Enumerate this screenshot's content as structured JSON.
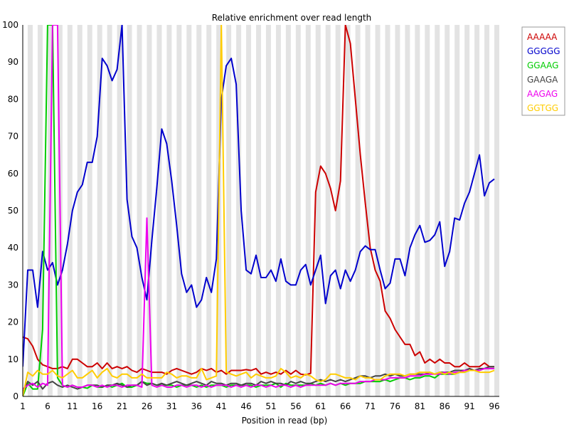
{
  "chart_data": {
    "type": "line",
    "title": "Relative enrichment over read length",
    "xlabel": "Position in read (bp)",
    "ylabel": "",
    "xlim": [
      1,
      97
    ],
    "ylim": [
      0,
      100
    ],
    "x_ticks": [
      "1",
      "6",
      "11",
      "16",
      "21",
      "26",
      "31",
      "36",
      "41",
      "46",
      "51",
      "56",
      "61",
      "66",
      "71",
      "76",
      "81",
      "86",
      "91",
      "96"
    ],
    "y_ticks": [
      "0",
      "10",
      "20",
      "30",
      "40",
      "50",
      "60",
      "70",
      "80",
      "90",
      "100"
    ],
    "grid": "alternating vertical bands",
    "legend_position": "top-right",
    "x": [
      1,
      2,
      3,
      4,
      5,
      6,
      7,
      8,
      9,
      10,
      11,
      12,
      13,
      14,
      15,
      16,
      17,
      18,
      19,
      20,
      21,
      22,
      23,
      24,
      25,
      26,
      27,
      28,
      29,
      30,
      31,
      32,
      33,
      34,
      35,
      36,
      37,
      38,
      39,
      40,
      41,
      42,
      43,
      44,
      45,
      46,
      47,
      48,
      49,
      50,
      51,
      52,
      53,
      54,
      55,
      56,
      57,
      58,
      59,
      60,
      61,
      62,
      63,
      64,
      65,
      66,
      67,
      68,
      69,
      70,
      71,
      72,
      73,
      74,
      75,
      76,
      77,
      78,
      79,
      80,
      81,
      82,
      83,
      84,
      85,
      86,
      87,
      88,
      89,
      90,
      91,
      92,
      93,
      94,
      95,
      96
    ],
    "series": [
      {
        "name": "AAAAA",
        "color": "#cc0000",
        "values": [
          16,
          15.5,
          13.5,
          10,
          8.5,
          8,
          7.5,
          7.5,
          8,
          7.5,
          10,
          10,
          9,
          8,
          8,
          9,
          7.5,
          9,
          7.5,
          8,
          7.5,
          8,
          7,
          6.5,
          7.5,
          7,
          6.5,
          6.5,
          6.5,
          6,
          7,
          7.5,
          7,
          6.5,
          6,
          6.5,
          7.5,
          7,
          7.5,
          6.5,
          7,
          6,
          7,
          7,
          7,
          7.2,
          7,
          7.5,
          6,
          6.5,
          6,
          6.5,
          6,
          7,
          6,
          7,
          6,
          5.8,
          6.2,
          55,
          62,
          60,
          56,
          50,
          58,
          100,
          95,
          80,
          65,
          52,
          40,
          34,
          31,
          23,
          21,
          18,
          16,
          14,
          14,
          11,
          12,
          9,
          10,
          9,
          10,
          9,
          9,
          8,
          8,
          9,
          8,
          8,
          8,
          9,
          8,
          8
        ]
      },
      {
        "name": "GGGGG",
        "color": "#0000cc",
        "values": [
          8,
          34,
          34,
          24,
          39,
          34,
          36,
          30,
          34,
          41,
          50,
          55,
          57,
          63,
          63,
          70,
          91,
          89,
          85,
          88,
          100,
          53,
          43,
          40,
          32,
          26,
          42,
          56,
          72,
          68,
          58,
          46,
          33,
          28,
          30,
          24,
          26,
          32,
          28,
          37,
          80,
          89,
          91,
          84,
          50,
          34,
          33,
          38,
          32,
          32,
          34,
          31,
          37,
          31,
          30,
          30,
          34,
          35.5,
          30,
          34,
          38,
          25,
          32.5,
          34,
          29,
          34,
          31,
          34,
          39,
          40.5,
          39.5,
          39.5,
          34,
          29,
          30.5,
          37,
          37,
          32.5,
          40,
          43.5,
          46,
          41.5,
          42,
          43.5,
          47,
          35,
          39,
          48,
          47.5,
          52,
          55,
          60,
          65,
          54,
          57.5,
          58.5
        ]
      },
      {
        "name": "GGAAG",
        "color": "#00cc00",
        "values": [
          0,
          3.5,
          2,
          2,
          18,
          100,
          100,
          5,
          3,
          2.5,
          3,
          2.5,
          2.5,
          2.2,
          3,
          2.5,
          2.5,
          3,
          2.5,
          3,
          3.5,
          2.5,
          2.5,
          3,
          4,
          3.5,
          3.5,
          3,
          3,
          3,
          3,
          2.5,
          3,
          3,
          3,
          2.5,
          3,
          2.5,
          3,
          3,
          3,
          2.5,
          3,
          3,
          3,
          3,
          3,
          2.5,
          3,
          3,
          3,
          3.5,
          2.5,
          3.5,
          3,
          3,
          3,
          3,
          3.5,
          3,
          3.5,
          3,
          3.5,
          3,
          3.5,
          3,
          3.5,
          3.5,
          3.5,
          4,
          4,
          4,
          4,
          4.5,
          4,
          4.5,
          5,
          5,
          4.5,
          5,
          5,
          5.5,
          5.5,
          5,
          6,
          6,
          6,
          6,
          6.5,
          6.5,
          7,
          7,
          7,
          7.5,
          7.5,
          7.5
        ]
      },
      {
        "name": "GAAGA",
        "color": "#444444",
        "values": [
          1,
          4,
          3,
          4,
          2,
          3.5,
          4,
          3,
          2.5,
          3,
          2.5,
          2,
          2.5,
          3,
          3,
          3,
          2.5,
          3,
          3,
          3.5,
          3,
          2.5,
          3,
          3,
          4,
          3,
          3.5,
          3,
          3.5,
          3,
          3.5,
          4,
          3.5,
          3,
          3.5,
          4,
          3.5,
          3,
          4,
          3.5,
          3.5,
          3,
          3.5,
          3.5,
          3,
          3.5,
          3.5,
          3,
          4,
          3.5,
          4,
          3.5,
          3.5,
          3,
          4,
          3.5,
          4,
          3.5,
          3.5,
          4,
          4.5,
          4,
          4.5,
          4,
          4.5,
          4,
          4.5,
          5,
          5.5,
          5.5,
          5,
          5.5,
          5.5,
          6,
          5.5,
          6,
          5.5,
          5.5,
          6,
          6,
          6,
          6,
          6.5,
          6,
          6.5,
          6.5,
          6.5,
          7,
          7,
          7,
          7.5,
          7,
          7.5,
          7.5,
          8,
          8
        ]
      },
      {
        "name": "AAGAG",
        "color": "#ee00ee",
        "values": [
          2,
          3,
          3.5,
          2.5,
          3.5,
          3,
          100,
          100,
          3,
          2.5,
          3,
          2.5,
          2.5,
          3,
          3,
          2.5,
          3,
          2.5,
          3,
          3,
          2.5,
          3,
          3,
          3,
          2.5,
          48,
          3,
          2.5,
          3,
          2.5,
          2.5,
          3,
          3,
          2.5,
          3,
          3,
          2.5,
          3,
          2.5,
          3,
          3,
          3,
          2.5,
          3,
          2.5,
          3,
          2.5,
          3,
          3,
          2.5,
          3,
          2.5,
          3,
          3,
          2.5,
          3,
          2.5,
          3,
          3,
          3,
          3,
          3,
          3.5,
          3,
          3.5,
          3.5,
          3.5,
          3.5,
          4,
          4,
          4,
          4.5,
          4.5,
          4.5,
          5,
          5,
          5,
          5,
          5.5,
          5.5,
          5.5,
          6,
          6,
          6,
          6,
          6.5,
          6,
          6.5,
          6.5,
          7,
          7,
          7,
          7,
          7.5,
          7.5,
          7.5
        ]
      },
      {
        "name": "GGTGG",
        "color": "#ffcc00",
        "values": [
          0,
          6.5,
          5.5,
          7,
          6,
          6,
          7,
          5.5,
          5,
          6,
          7,
          5,
          5,
          6,
          7,
          5,
          6.5,
          7.5,
          5.5,
          5,
          6,
          6,
          5,
          5,
          6,
          5,
          5,
          5,
          5,
          6.5,
          6,
          5,
          5.5,
          5.5,
          5,
          5,
          7.5,
          4.5,
          5,
          5.5,
          100,
          6.5,
          6,
          5.5,
          6,
          6.5,
          5,
          6,
          5.5,
          5,
          5,
          5.5,
          7.5,
          6.5,
          5,
          5.5,
          5,
          6,
          5.5,
          4.5,
          4,
          4.5,
          6,
          6,
          5.5,
          5,
          5,
          4.5,
          5.5,
          5,
          5,
          4.5,
          4.5,
          5.5,
          6,
          6,
          6,
          5.5,
          6,
          6,
          6.5,
          6.5,
          6.5,
          6,
          6.5,
          6,
          6.5,
          6,
          6.5,
          6.5,
          7,
          7,
          6.5,
          6.5,
          6.5,
          7
        ]
      }
    ]
  }
}
